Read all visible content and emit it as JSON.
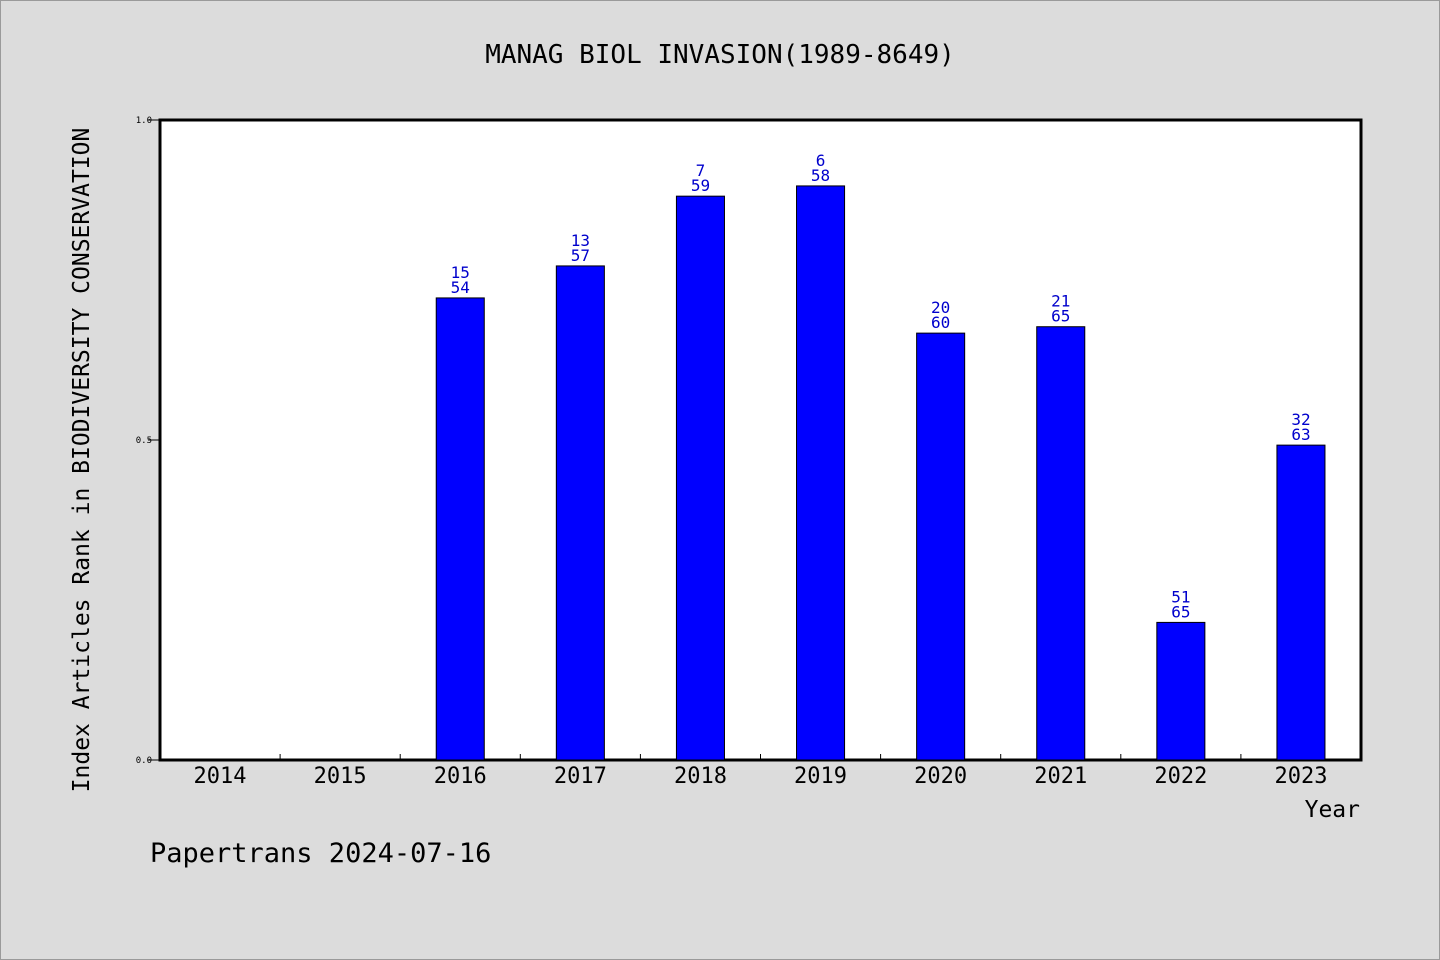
{
  "chart_data": {
    "type": "bar",
    "title": "MANAG BIOL INVASION(1989-8649)",
    "xlabel": "Year",
    "ylabel": "Index Articles Rank in BIODIVERSITY CONSERVATION",
    "ylim": [
      0.0,
      1.0
    ],
    "yticks": [
      "0.0",
      "0.5",
      "1.0"
    ],
    "categories": [
      "2014",
      "2015",
      "2016",
      "2017",
      "2018",
      "2019",
      "2020",
      "2021",
      "2022",
      "2023"
    ],
    "values": [
      null,
      null,
      0.722,
      0.772,
      0.881,
      0.897,
      0.667,
      0.677,
      0.215,
      0.492
    ],
    "labels": [
      null,
      null,
      [
        "15",
        "54"
      ],
      [
        "13",
        "57"
      ],
      [
        "7",
        "59"
      ],
      [
        "6",
        "58"
      ],
      [
        "20",
        "60"
      ],
      [
        "21",
        "65"
      ],
      [
        "51",
        "65"
      ],
      [
        "32",
        "63"
      ]
    ],
    "bar_color": "#0000ff",
    "label_color": "#0000cc",
    "grid": false
  },
  "footer": {
    "credit": "Papertrans 2024-07-16"
  }
}
